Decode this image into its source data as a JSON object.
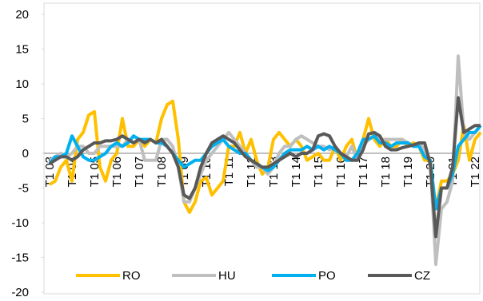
{
  "chart_data": {
    "type": "line",
    "categories": [
      "T1 03",
      null,
      null,
      null,
      "T1 04",
      null,
      null,
      null,
      "T1 05",
      null,
      null,
      null,
      "T1 06",
      null,
      null,
      null,
      "T1 07",
      null,
      null,
      null,
      "T1 08",
      null,
      null,
      null,
      "T1 09",
      null,
      null,
      null,
      "T1 10",
      null,
      null,
      null,
      "T1 11",
      null,
      null,
      null,
      "T1 12",
      null,
      null,
      null,
      "T1 13",
      null,
      null,
      null,
      "T1 14",
      null,
      null,
      null,
      "T1 15",
      null,
      null,
      null,
      "T1 16",
      null,
      null,
      null,
      "T1 17",
      null,
      null,
      null,
      "T1 18",
      null,
      null,
      null,
      "T1 19",
      null,
      null,
      null,
      "T1 20",
      null,
      null,
      null,
      "T1 21",
      null,
      null,
      null,
      "T1 22",
      null
    ],
    "series": [
      {
        "name": "RO",
        "color": "#ffc000",
        "values": [
          -4.5,
          -4,
          -2,
          -1,
          -4,
          2,
          3,
          5.5,
          6,
          -2,
          -4,
          -1,
          0,
          5,
          1,
          1,
          2,
          1,
          2,
          1.5,
          5,
          7,
          7.5,
          2,
          -7,
          -8.5,
          -7,
          -4,
          -3.5,
          -6,
          -5,
          -4,
          1,
          1,
          3,
          0,
          2,
          -1,
          -3,
          -2,
          2,
          3,
          2,
          1,
          2,
          1,
          -1,
          -0.5,
          0,
          -1,
          -1,
          1,
          -1,
          1,
          2,
          -1,
          2,
          5,
          2,
          1,
          2,
          1,
          1,
          2,
          1,
          1.5,
          1,
          -1,
          -1,
          -8,
          -4,
          -4,
          -3,
          -1,
          4,
          -1,
          2,
          3
        ]
      },
      {
        "name": "HU",
        "color": "#bfbfbf",
        "values": [
          -1,
          -0.5,
          0,
          -0.5,
          0,
          1,
          1,
          0,
          0,
          1,
          1,
          1,
          1,
          1,
          2,
          1.5,
          2,
          -1,
          -1,
          -1,
          2,
          2,
          1,
          -2,
          -7,
          -7,
          -5,
          -3,
          -1,
          0,
          1,
          2,
          3,
          2,
          1,
          0,
          -1,
          -2,
          -2,
          -3,
          -2,
          0,
          1,
          1,
          2,
          2.5,
          2,
          1.5,
          1,
          1,
          0.5,
          1,
          0,
          -0.5,
          1,
          -1,
          1,
          2,
          2.5,
          2,
          2,
          2,
          2,
          2,
          1.5,
          1,
          1.5,
          0.5,
          -1,
          -16,
          -8,
          -7,
          -4,
          14,
          3,
          2,
          3,
          4
        ]
      },
      {
        "name": "PO",
        "color": "#00b0f0",
        "values": [
          -1.5,
          -0.5,
          -0.5,
          0,
          2.5,
          1,
          -0.5,
          -1,
          -1,
          -0.5,
          0,
          1,
          1.5,
          1,
          1.5,
          2.5,
          2,
          2,
          2,
          1.5,
          1.5,
          1,
          0,
          -1,
          -2,
          -1.5,
          -1,
          -1,
          0,
          1,
          1.5,
          2,
          1,
          0.5,
          0,
          0,
          -1,
          -1.5,
          -2,
          -2.5,
          -2,
          -1,
          0,
          0.5,
          0.5,
          0.5,
          1,
          0.5,
          1,
          0.5,
          1,
          0.5,
          0,
          -1,
          -1,
          0,
          2,
          2,
          2.5,
          1.5,
          1.5,
          1,
          1.5,
          1.5,
          1.5,
          1,
          1,
          -0.5,
          -1,
          -8,
          -5,
          -5,
          -3,
          1,
          2,
          3,
          3,
          4
        ]
      },
      {
        "name": "CZ",
        "color": "#595959",
        "values": [
          -1.5,
          -1,
          -0.5,
          -0.5,
          -1,
          -0.5,
          0.5,
          1,
          1.5,
          1.5,
          1.8,
          1.8,
          2,
          2.5,
          2,
          1.5,
          2,
          1.5,
          2,
          1.5,
          2,
          1,
          0,
          -2,
          -6,
          -6.5,
          -5,
          -2,
          0,
          1.5,
          2,
          2.5,
          2,
          1.5,
          0.5,
          -0.5,
          -1,
          -1.5,
          -2,
          -2,
          -1.5,
          -1,
          -0.5,
          0,
          -0.5,
          0,
          0,
          0.5,
          2.5,
          2.8,
          2.5,
          1,
          0,
          -0.5,
          -1,
          -1,
          0.5,
          2.8,
          3,
          2.5,
          1,
          0.5,
          0.5,
          0.8,
          1,
          1.2,
          1.5,
          1.5,
          -1.5,
          -12,
          -5,
          -5,
          -2,
          8,
          3,
          3.5,
          4,
          4
        ]
      }
    ],
    "ylim": [
      -20,
      20
    ],
    "yticks": [
      -20,
      -15,
      -10,
      -5,
      0,
      5,
      10,
      15,
      20
    ],
    "legend": "bottom"
  }
}
